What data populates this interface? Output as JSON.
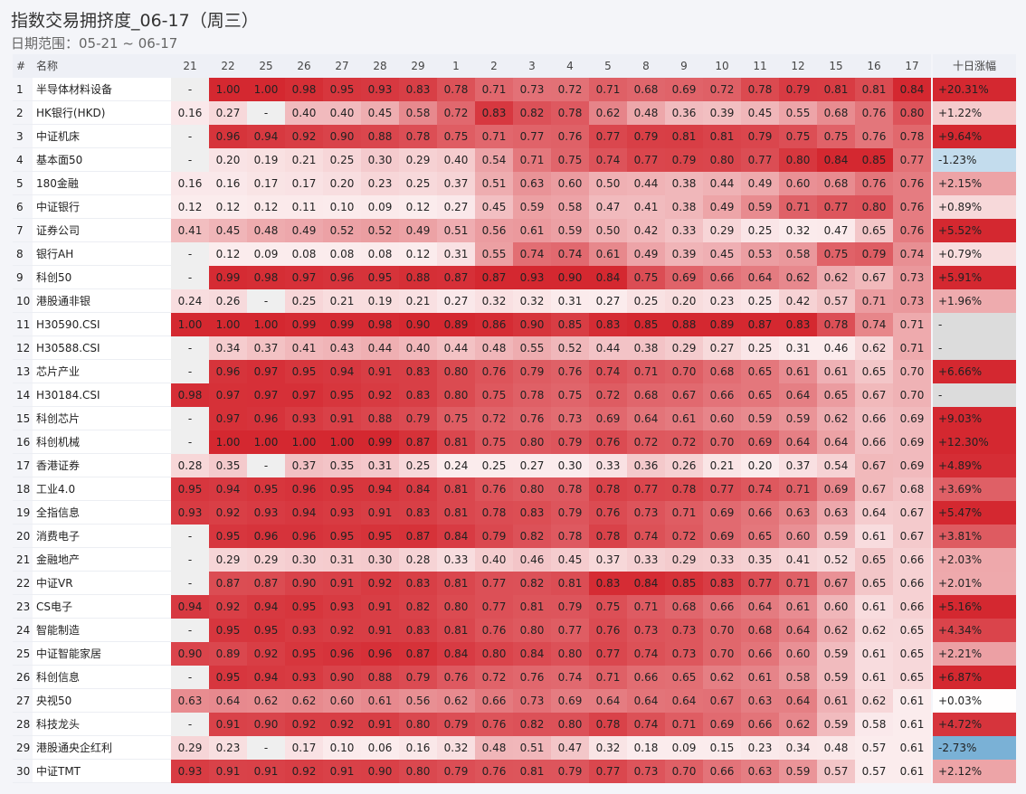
{
  "header": {
    "title": "指数交易拥挤度_06-17（周三）",
    "subtitle": "日期范围：05-21 ~ 06-17"
  },
  "table": {
    "columns": [
      "#",
      "名称",
      "21",
      "22",
      "25",
      "26",
      "27",
      "28",
      "29",
      "1",
      "2",
      "3",
      "4",
      "5",
      "8",
      "9",
      "10",
      "11",
      "12",
      "15",
      "16",
      "17",
      "十日涨幅"
    ],
    "rows": [
      [
        1,
        "半导体材料设备",
        "-",
        "1.00",
        "1.00",
        "0.98",
        "0.95",
        "0.93",
        "0.83",
        "0.78",
        "0.71",
        "0.73",
        "0.72",
        "0.71",
        "0.68",
        "0.69",
        "0.72",
        "0.78",
        "0.79",
        "0.81",
        "0.81",
        "0.84",
        "+20.31%"
      ],
      [
        2,
        "HK银行(HKD)",
        "0.16",
        "0.27",
        "-",
        "0.40",
        "0.40",
        "0.45",
        "0.58",
        "0.72",
        "0.83",
        "0.82",
        "0.78",
        "0.62",
        "0.48",
        "0.36",
        "0.39",
        "0.45",
        "0.55",
        "0.68",
        "0.76",
        "0.80",
        "+1.22%"
      ],
      [
        3,
        "中证机床",
        "-",
        "0.96",
        "0.94",
        "0.92",
        "0.90",
        "0.88",
        "0.78",
        "0.75",
        "0.71",
        "0.77",
        "0.76",
        "0.77",
        "0.79",
        "0.81",
        "0.81",
        "0.79",
        "0.75",
        "0.75",
        "0.76",
        "0.78",
        "+9.64%"
      ],
      [
        4,
        "基本面50",
        "-",
        "0.20",
        "0.19",
        "0.21",
        "0.25",
        "0.30",
        "0.29",
        "0.40",
        "0.54",
        "0.71",
        "0.75",
        "0.74",
        "0.77",
        "0.79",
        "0.80",
        "0.77",
        "0.80",
        "0.84",
        "0.85",
        "0.77",
        "-1.23%"
      ],
      [
        5,
        "180金融",
        "0.16",
        "0.16",
        "0.17",
        "0.17",
        "0.20",
        "0.23",
        "0.25",
        "0.37",
        "0.51",
        "0.63",
        "0.60",
        "0.50",
        "0.44",
        "0.38",
        "0.44",
        "0.49",
        "0.60",
        "0.68",
        "0.76",
        "0.76",
        "+2.15%"
      ],
      [
        6,
        "中证银行",
        "0.12",
        "0.12",
        "0.12",
        "0.11",
        "0.10",
        "0.09",
        "0.12",
        "0.27",
        "0.45",
        "0.59",
        "0.58",
        "0.47",
        "0.41",
        "0.38",
        "0.49",
        "0.59",
        "0.71",
        "0.77",
        "0.80",
        "0.76",
        "+0.89%"
      ],
      [
        7,
        "证券公司",
        "0.41",
        "0.45",
        "0.48",
        "0.49",
        "0.52",
        "0.52",
        "0.49",
        "0.51",
        "0.56",
        "0.61",
        "0.59",
        "0.50",
        "0.42",
        "0.33",
        "0.29",
        "0.25",
        "0.32",
        "0.47",
        "0.65",
        "0.76",
        "+5.52%"
      ],
      [
        8,
        "银行AH",
        "-",
        "0.12",
        "0.09",
        "0.08",
        "0.08",
        "0.08",
        "0.12",
        "0.31",
        "0.55",
        "0.74",
        "0.74",
        "0.61",
        "0.49",
        "0.39",
        "0.45",
        "0.53",
        "0.58",
        "0.75",
        "0.79",
        "0.74",
        "+0.79%"
      ],
      [
        9,
        "科创50",
        "-",
        "0.99",
        "0.98",
        "0.97",
        "0.96",
        "0.95",
        "0.88",
        "0.87",
        "0.87",
        "0.93",
        "0.90",
        "0.84",
        "0.75",
        "0.69",
        "0.66",
        "0.64",
        "0.62",
        "0.62",
        "0.67",
        "0.73",
        "+5.91%"
      ],
      [
        10,
        "港股通非银",
        "0.24",
        "0.26",
        "-",
        "0.25",
        "0.21",
        "0.19",
        "0.21",
        "0.27",
        "0.32",
        "0.32",
        "0.31",
        "0.27",
        "0.25",
        "0.20",
        "0.23",
        "0.25",
        "0.42",
        "0.57",
        "0.71",
        "0.73",
        "+1.96%"
      ],
      [
        11,
        "H30590.CSI",
        "1.00",
        "1.00",
        "1.00",
        "0.99",
        "0.99",
        "0.98",
        "0.90",
        "0.89",
        "0.86",
        "0.90",
        "0.85",
        "0.83",
        "0.85",
        "0.88",
        "0.89",
        "0.87",
        "0.83",
        "0.78",
        "0.74",
        "0.71",
        "-"
      ],
      [
        12,
        "H30588.CSI",
        "-",
        "0.34",
        "0.37",
        "0.41",
        "0.43",
        "0.44",
        "0.40",
        "0.44",
        "0.48",
        "0.55",
        "0.52",
        "0.44",
        "0.38",
        "0.29",
        "0.27",
        "0.25",
        "0.31",
        "0.46",
        "0.62",
        "0.71",
        "-"
      ],
      [
        13,
        "芯片产业",
        "-",
        "0.96",
        "0.97",
        "0.95",
        "0.94",
        "0.91",
        "0.83",
        "0.80",
        "0.76",
        "0.79",
        "0.76",
        "0.74",
        "0.71",
        "0.70",
        "0.68",
        "0.65",
        "0.61",
        "0.61",
        "0.65",
        "0.70",
        "+6.66%"
      ],
      [
        14,
        "H30184.CSI",
        "0.98",
        "0.97",
        "0.97",
        "0.97",
        "0.95",
        "0.92",
        "0.83",
        "0.80",
        "0.75",
        "0.78",
        "0.75",
        "0.72",
        "0.68",
        "0.67",
        "0.66",
        "0.65",
        "0.64",
        "0.65",
        "0.67",
        "0.70",
        "-"
      ],
      [
        15,
        "科创芯片",
        "-",
        "0.97",
        "0.96",
        "0.93",
        "0.91",
        "0.88",
        "0.79",
        "0.75",
        "0.72",
        "0.76",
        "0.73",
        "0.69",
        "0.64",
        "0.61",
        "0.60",
        "0.59",
        "0.59",
        "0.62",
        "0.66",
        "0.69",
        "+9.03%"
      ],
      [
        16,
        "科创机械",
        "-",
        "1.00",
        "1.00",
        "1.00",
        "1.00",
        "0.99",
        "0.87",
        "0.81",
        "0.75",
        "0.80",
        "0.79",
        "0.76",
        "0.72",
        "0.72",
        "0.70",
        "0.69",
        "0.64",
        "0.64",
        "0.66",
        "0.69",
        "+12.30%"
      ],
      [
        17,
        "香港证券",
        "0.28",
        "0.35",
        "-",
        "0.37",
        "0.35",
        "0.31",
        "0.25",
        "0.24",
        "0.25",
        "0.27",
        "0.30",
        "0.33",
        "0.36",
        "0.26",
        "0.21",
        "0.20",
        "0.37",
        "0.54",
        "0.67",
        "0.69",
        "+4.89%"
      ],
      [
        18,
        "工业4.0",
        "0.95",
        "0.94",
        "0.95",
        "0.96",
        "0.95",
        "0.94",
        "0.84",
        "0.81",
        "0.76",
        "0.80",
        "0.78",
        "0.78",
        "0.77",
        "0.78",
        "0.77",
        "0.74",
        "0.71",
        "0.69",
        "0.67",
        "0.68",
        "+3.69%"
      ],
      [
        19,
        "全指信息",
        "0.93",
        "0.92",
        "0.93",
        "0.94",
        "0.93",
        "0.91",
        "0.83",
        "0.81",
        "0.78",
        "0.83",
        "0.79",
        "0.76",
        "0.73",
        "0.71",
        "0.69",
        "0.66",
        "0.63",
        "0.63",
        "0.64",
        "0.67",
        "+5.47%"
      ],
      [
        20,
        "消费电子",
        "-",
        "0.95",
        "0.96",
        "0.96",
        "0.95",
        "0.95",
        "0.87",
        "0.84",
        "0.79",
        "0.82",
        "0.78",
        "0.78",
        "0.74",
        "0.72",
        "0.69",
        "0.65",
        "0.60",
        "0.59",
        "0.61",
        "0.67",
        "+3.81%"
      ],
      [
        21,
        "金融地产",
        "-",
        "0.29",
        "0.29",
        "0.30",
        "0.31",
        "0.30",
        "0.28",
        "0.33",
        "0.40",
        "0.46",
        "0.45",
        "0.37",
        "0.33",
        "0.29",
        "0.33",
        "0.35",
        "0.41",
        "0.52",
        "0.65",
        "0.66",
        "+2.03%"
      ],
      [
        22,
        "中证VR",
        "-",
        "0.87",
        "0.87",
        "0.90",
        "0.91",
        "0.92",
        "0.83",
        "0.81",
        "0.77",
        "0.82",
        "0.81",
        "0.83",
        "0.84",
        "0.85",
        "0.83",
        "0.77",
        "0.71",
        "0.67",
        "0.65",
        "0.66",
        "+2.01%"
      ],
      [
        23,
        "CS电子",
        "0.94",
        "0.92",
        "0.94",
        "0.95",
        "0.93",
        "0.91",
        "0.82",
        "0.80",
        "0.77",
        "0.81",
        "0.79",
        "0.75",
        "0.71",
        "0.68",
        "0.66",
        "0.64",
        "0.61",
        "0.60",
        "0.61",
        "0.66",
        "+5.16%"
      ],
      [
        24,
        "智能制造",
        "-",
        "0.95",
        "0.95",
        "0.93",
        "0.92",
        "0.91",
        "0.83",
        "0.81",
        "0.76",
        "0.80",
        "0.77",
        "0.76",
        "0.73",
        "0.73",
        "0.70",
        "0.68",
        "0.64",
        "0.62",
        "0.62",
        "0.65",
        "+4.34%"
      ],
      [
        25,
        "中证智能家居",
        "0.90",
        "0.89",
        "0.92",
        "0.95",
        "0.96",
        "0.96",
        "0.87",
        "0.84",
        "0.80",
        "0.84",
        "0.80",
        "0.77",
        "0.74",
        "0.73",
        "0.70",
        "0.66",
        "0.60",
        "0.59",
        "0.61",
        "0.65",
        "+2.21%"
      ],
      [
        26,
        "科创信息",
        "-",
        "0.95",
        "0.94",
        "0.93",
        "0.90",
        "0.88",
        "0.79",
        "0.76",
        "0.72",
        "0.76",
        "0.74",
        "0.71",
        "0.66",
        "0.65",
        "0.62",
        "0.61",
        "0.58",
        "0.59",
        "0.61",
        "0.65",
        "+6.87%"
      ],
      [
        27,
        "央视50",
        "0.63",
        "0.64",
        "0.62",
        "0.62",
        "0.60",
        "0.61",
        "0.56",
        "0.62",
        "0.66",
        "0.73",
        "0.69",
        "0.64",
        "0.64",
        "0.64",
        "0.67",
        "0.63",
        "0.64",
        "0.61",
        "0.62",
        "0.61",
        "+0.03%"
      ],
      [
        28,
        "科技龙头",
        "-",
        "0.91",
        "0.90",
        "0.92",
        "0.92",
        "0.91",
        "0.80",
        "0.79",
        "0.76",
        "0.82",
        "0.80",
        "0.78",
        "0.74",
        "0.71",
        "0.69",
        "0.66",
        "0.62",
        "0.59",
        "0.58",
        "0.61",
        "+4.72%"
      ],
      [
        29,
        "港股通央企红利",
        "0.29",
        "0.23",
        "-",
        "0.17",
        "0.10",
        "0.06",
        "0.16",
        "0.32",
        "0.48",
        "0.51",
        "0.47",
        "0.32",
        "0.18",
        "0.09",
        "0.15",
        "0.23",
        "0.34",
        "0.48",
        "0.57",
        "0.61",
        "-2.73%"
      ],
      [
        30,
        "中证TMT",
        "0.93",
        "0.91",
        "0.91",
        "0.92",
        "0.91",
        "0.90",
        "0.80",
        "0.79",
        "0.76",
        "0.81",
        "0.79",
        "0.77",
        "0.73",
        "0.70",
        "0.66",
        "0.63",
        "0.59",
        "0.57",
        "0.57",
        "0.61",
        "+2.12%"
      ]
    ]
  }
}
